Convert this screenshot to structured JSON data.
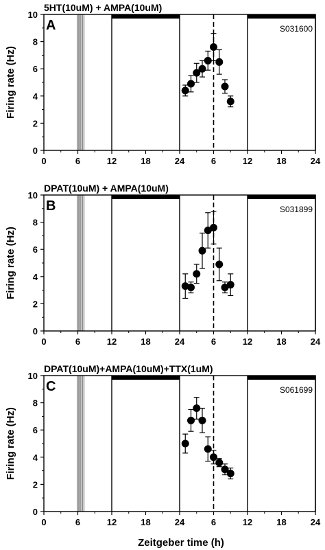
{
  "figure": {
    "xlabel": "Zeitgeber time (h)",
    "ylabel": "Firing rate (Hz)"
  },
  "chart_data": [
    {
      "type": "scatter",
      "panel_letter": "A",
      "title": "5HT(10uM) + AMPA(10uM)",
      "sample_id": "S031600",
      "xlabel": "Zeitgeber time (h)",
      "ylabel": "Firing rate (Hz)",
      "xlim": [
        0,
        48
      ],
      "ylim": [
        0,
        10
      ],
      "x_tick_labels": [
        "0",
        "6",
        "12",
        "18",
        "24",
        "6",
        "12",
        "18",
        "24"
      ],
      "y_tick_labels": [
        "0",
        "2",
        "4",
        "6",
        "8",
        "10"
      ],
      "treatment_time": 6.5,
      "dashed_line_time": 30,
      "dark_periods": [
        [
          12,
          24
        ],
        [
          36,
          48
        ]
      ],
      "points": [
        {
          "x": 25,
          "y": 4.4,
          "err": 0.4
        },
        {
          "x": 26,
          "y": 4.9,
          "err": 0.6
        },
        {
          "x": 27,
          "y": 5.7,
          "err": 0.7
        },
        {
          "x": 28,
          "y": 6.0,
          "err": 0.6
        },
        {
          "x": 29,
          "y": 6.6,
          "err": 0.7
        },
        {
          "x": 30,
          "y": 7.6,
          "err": 1.0
        },
        {
          "x": 31,
          "y": 6.5,
          "err": 0.9
        },
        {
          "x": 32,
          "y": 4.7,
          "err": 0.5
        },
        {
          "x": 33,
          "y": 3.6,
          "err": 0.4
        }
      ]
    },
    {
      "type": "scatter",
      "panel_letter": "B",
      "title": "DPAT(10uM) + AMPA(10uM)",
      "sample_id": "S031899",
      "xlabel": "Zeitgeber time (h)",
      "ylabel": "Firing rate (Hz)",
      "xlim": [
        0,
        48
      ],
      "ylim": [
        0,
        10
      ],
      "x_tick_labels": [
        "0",
        "6",
        "12",
        "18",
        "24",
        "6",
        "12",
        "18",
        "24"
      ],
      "y_tick_labels": [
        "0",
        "2",
        "4",
        "6",
        "8",
        "10"
      ],
      "treatment_time": 6.5,
      "dashed_line_time": 30,
      "dark_periods": [
        [
          12,
          24
        ],
        [
          36,
          48
        ]
      ],
      "points": [
        {
          "x": 25,
          "y": 3.3,
          "err": 0.9
        },
        {
          "x": 26,
          "y": 3.2,
          "err": 0.4
        },
        {
          "x": 27,
          "y": 4.2,
          "err": 0.7
        },
        {
          "x": 28,
          "y": 5.9,
          "err": 1.3
        },
        {
          "x": 29,
          "y": 7.4,
          "err": 1.3
        },
        {
          "x": 30,
          "y": 7.6,
          "err": 1.2
        },
        {
          "x": 31,
          "y": 4.9,
          "err": 1.2
        },
        {
          "x": 32,
          "y": 3.2,
          "err": 0.4
        },
        {
          "x": 33,
          "y": 3.4,
          "err": 0.8
        }
      ]
    },
    {
      "type": "scatter",
      "panel_letter": "C",
      "title": "DPAT(10uM)+AMPA(10uM)+TTX(1uM)",
      "sample_id": "S061699",
      "xlabel": "Zeitgeber time (h)",
      "ylabel": "Firing rate (Hz)",
      "xlim": [
        0,
        48
      ],
      "ylim": [
        0,
        10
      ],
      "x_tick_labels": [
        "0",
        "6",
        "12",
        "18",
        "24",
        "6",
        "12",
        "18",
        "24"
      ],
      "y_tick_labels": [
        "0",
        "2",
        "4",
        "6",
        "8",
        "10"
      ],
      "treatment_time": 6.5,
      "dashed_line_time": 30,
      "dark_periods": [
        [
          12,
          24
        ],
        [
          36,
          48
        ]
      ],
      "points": [
        {
          "x": 25,
          "y": 5.0,
          "err": 0.7
        },
        {
          "x": 26,
          "y": 6.7,
          "err": 0.8
        },
        {
          "x": 27,
          "y": 7.6,
          "err": 0.8
        },
        {
          "x": 28,
          "y": 6.7,
          "err": 0.9
        },
        {
          "x": 29,
          "y": 4.6,
          "err": 0.9
        },
        {
          "x": 30,
          "y": 4.0,
          "err": 0.5
        },
        {
          "x": 31,
          "y": 3.6,
          "err": 0.3
        },
        {
          "x": 32,
          "y": 3.1,
          "err": 0.4
        },
        {
          "x": 33,
          "y": 2.8,
          "err": 0.4
        }
      ]
    }
  ]
}
